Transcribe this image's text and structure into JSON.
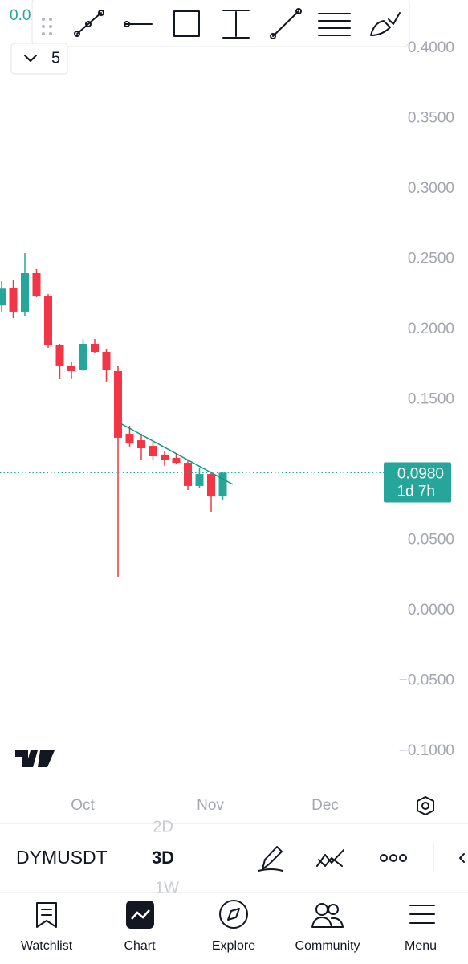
{
  "header": {
    "price_fragment": "0.0",
    "interval_count": "5"
  },
  "chart_data": {
    "type": "candlestick",
    "categories": [
      null,
      null,
      null,
      null,
      null,
      null,
      null,
      null,
      null,
      null,
      null,
      null,
      null,
      null,
      null,
      null,
      null,
      null,
      null,
      null
    ],
    "open": [
      0.217,
      0.2297,
      0.2126,
      0.24,
      0.224,
      0.1886,
      0.1743,
      0.1714,
      0.1897,
      0.184,
      0.1703,
      0.1257,
      0.1211,
      0.1171,
      0.1109,
      0.1086,
      0.1051,
      0.0886,
      0.0971,
      0.0811
    ],
    "high": [
      0.2343,
      0.2354,
      0.2543,
      0.2429,
      0.2251,
      0.1897,
      0.1771,
      0.1931,
      0.1931,
      0.1857,
      0.1743,
      0.1314,
      0.1257,
      0.12,
      0.1131,
      0.1114,
      0.1074,
      0.1017,
      0.0983,
      0.0983
    ],
    "low": [
      0.2126,
      0.208,
      0.2097,
      0.2229,
      0.1869,
      0.1646,
      0.1646,
      0.1703,
      0.1829,
      0.1629,
      0.024,
      0.1166,
      0.1074,
      0.1074,
      0.1029,
      0.104,
      0.0857,
      0.0869,
      0.0703,
      0.0789
    ],
    "close": [
      0.229,
      0.2126,
      0.24,
      0.224,
      0.1886,
      0.1743,
      0.1703,
      0.1897,
      0.184,
      0.1714,
      0.1229,
      0.1189,
      0.1154,
      0.1097,
      0.1074,
      0.1051,
      0.0886,
      0.0971,
      0.0811,
      0.098
    ],
    "up_color": "#26a69a",
    "down_color": "#f23645",
    "ylim": [
      -0.1286,
      0.4343
    ],
    "yticks": [
      {
        "value": 0.4,
        "label": "0.4000"
      },
      {
        "value": 0.35,
        "label": "0.3500"
      },
      {
        "value": 0.3,
        "label": "0.3000"
      },
      {
        "value": 0.25,
        "label": "0.2500"
      },
      {
        "value": 0.2,
        "label": "0.2000"
      },
      {
        "value": 0.15,
        "label": "0.1500"
      },
      {
        "value": 0.05,
        "label": "0.0500"
      },
      {
        "value": 0,
        "label": "0.0000"
      },
      {
        "value": -0.05,
        "label": "−0.0500"
      },
      {
        "value": -0.1,
        "label": "−0.1000"
      }
    ],
    "last_price": {
      "value": 0.098,
      "label": "0.0980",
      "countdown": "1d 7h"
    },
    "time_axis": [
      "Oct",
      "Nov",
      "Dec"
    ]
  },
  "toolbar": {
    "symbol": "DYMUSDT",
    "intervals": [
      "2D",
      "3D",
      "1W"
    ]
  },
  "nav": [
    "Watchlist",
    "Chart",
    "Explore",
    "Community",
    "Menu"
  ]
}
